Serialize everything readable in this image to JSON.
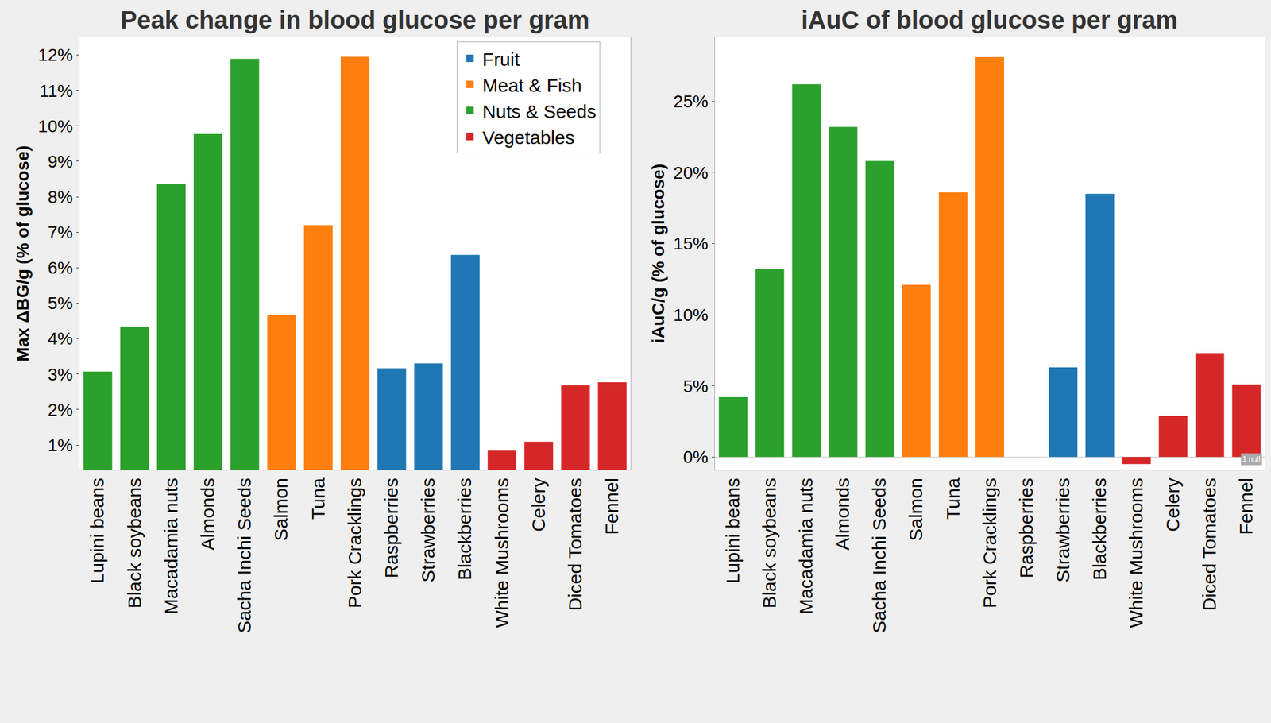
{
  "chart_data": [
    {
      "type": "bar",
      "title": "Peak change in blood glucose per gram",
      "y_label": "Max ΔBG/g (% of glucose)",
      "categories": [
        "Lupini beans",
        "Black soybeans",
        "Macadamia nuts",
        "Almonds",
        "Sacha Inchi Seeds",
        "Salmon",
        "Tuna",
        "Pork Cracklings",
        "Raspberries",
        "Strawberries",
        "Blackberries",
        "White Mushrooms",
        "Celery",
        "Diced Tomatoes",
        "Fennel"
      ],
      "series": [
        {
          "name": "Fruit",
          "color": "#1f77b4",
          "values": [
            null,
            null,
            null,
            null,
            null,
            null,
            null,
            null,
            3.16,
            3.3,
            6.36,
            null,
            null,
            null,
            null
          ]
        },
        {
          "name": "Meat & Fish",
          "color": "#ff7f0e",
          "values": [
            null,
            null,
            null,
            null,
            null,
            4.66,
            7.2,
            11.95,
            null,
            null,
            null,
            null,
            null,
            null,
            null
          ]
        },
        {
          "name": "Nuts & Seeds",
          "color": "#2ca02c",
          "values": [
            3.07,
            4.34,
            8.36,
            9.77,
            11.89,
            null,
            null,
            null,
            null,
            null,
            null,
            null,
            null,
            null,
            null
          ]
        },
        {
          "name": "Vegetables",
          "color": "#d62728",
          "values": [
            null,
            null,
            null,
            null,
            null,
            null,
            null,
            null,
            null,
            null,
            null,
            0.84,
            1.09,
            2.68,
            2.77
          ]
        }
      ],
      "ylim": [
        0.3,
        12.5
      ],
      "yticks": [
        {
          "value": 1,
          "label": "1%"
        },
        {
          "value": 2,
          "label": "2%"
        },
        {
          "value": 3,
          "label": "3%"
        },
        {
          "value": 4,
          "label": "4%"
        },
        {
          "value": 5,
          "label": "5%"
        },
        {
          "value": 6,
          "label": "6%"
        },
        {
          "value": 7,
          "label": "7%"
        },
        {
          "value": 8,
          "label": "8%"
        },
        {
          "value": 9,
          "label": "9%"
        },
        {
          "value": 10,
          "label": "10%"
        },
        {
          "value": 11,
          "label": "11%"
        },
        {
          "value": 12,
          "label": "12%"
        }
      ],
      "grid": false,
      "legend": "top right"
    },
    {
      "type": "bar",
      "title": "iAuC of blood glucose per gram",
      "y_label": "iAuC/g (% of glucose)",
      "categories": [
        "Lupini beans",
        "Black soybeans",
        "Macadamia nuts",
        "Almonds",
        "Sacha Inchi Seeds",
        "Salmon",
        "Tuna",
        "Pork Cracklings",
        "Raspberries",
        "Strawberries",
        "Blackberries",
        "White Mushrooms",
        "Celery",
        "Diced Tomatoes",
        "Fennel"
      ],
      "values": [
        4.2,
        13.2,
        26.2,
        23.2,
        20.8,
        12.1,
        18.6,
        28.1,
        null,
        6.3,
        18.5,
        -0.5,
        2.9,
        7.3,
        5.1
      ],
      "colors": [
        "#2ca02c",
        "#2ca02c",
        "#2ca02c",
        "#2ca02c",
        "#2ca02c",
        "#ff7f0e",
        "#ff7f0e",
        "#ff7f0e",
        "#1f77b4",
        "#1f77b4",
        "#1f77b4",
        "#d62728",
        "#d62728",
        "#d62728",
        "#d62728"
      ],
      "ylim": [
        -0.9,
        29.5
      ],
      "yticks": [
        {
          "value": 0,
          "label": "0%"
        },
        {
          "value": 5,
          "label": "5%"
        },
        {
          "value": 10,
          "label": "10%"
        },
        {
          "value": 15,
          "label": "15%"
        },
        {
          "value": 20,
          "label": "20%"
        },
        {
          "value": 25,
          "label": "25%"
        }
      ],
      "grid": false,
      "annotations": [
        "1 null"
      ]
    }
  ]
}
